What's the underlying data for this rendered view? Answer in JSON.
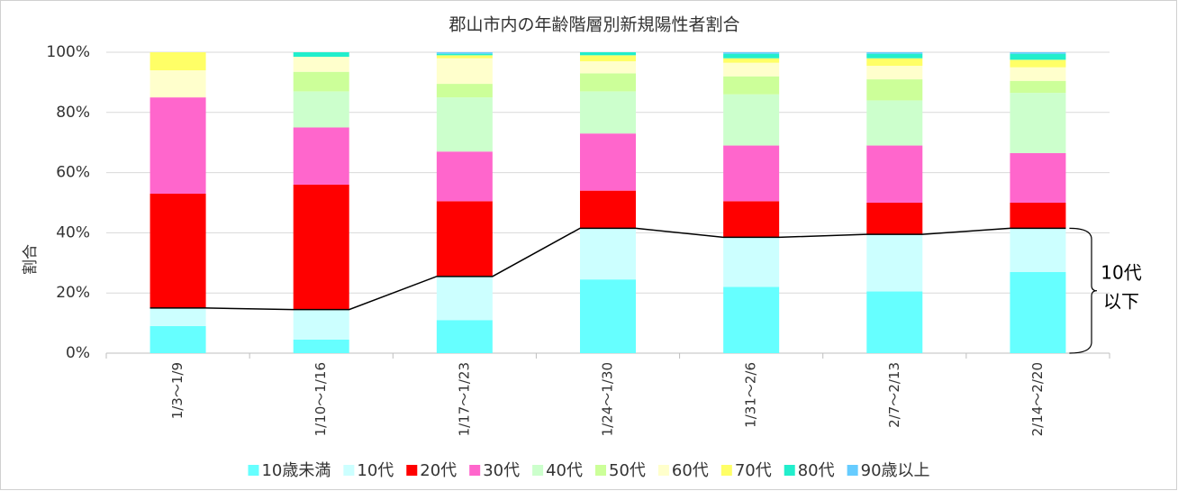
{
  "chart_data": {
    "type": "stacked_bar",
    "title": "郡山市内の年齢階層別新規陽性者割合",
    "y_label": "割合",
    "annotation": [
      "10代",
      "以下"
    ],
    "categories": [
      "1/3～1/9",
      "1/10～1/16",
      "1/17～1/23",
      "1/24～1/30",
      "1/31～2/6",
      "2/7～2/13",
      "2/14～2/20"
    ],
    "series": [
      {
        "name": "10歳未満",
        "color": "#66ffff",
        "values": [
          9,
          4.5,
          11,
          24.5,
          22,
          20.5,
          27
        ]
      },
      {
        "name": "10代",
        "color": "#ccffff",
        "values": [
          6,
          10,
          14.5,
          17,
          16.5,
          19,
          14.5
        ]
      },
      {
        "name": "20代",
        "color": "#ff0000",
        "values": [
          38,
          41.5,
          25,
          12.5,
          12,
          10.5,
          8.5
        ]
      },
      {
        "name": "30代",
        "color": "#ff66cc",
        "values": [
          32,
          19,
          16.5,
          19,
          18.5,
          19,
          16.5
        ]
      },
      {
        "name": "40代",
        "color": "#ccffcc",
        "values": [
          0,
          12,
          18,
          14,
          17,
          15,
          20
        ]
      },
      {
        "name": "50代",
        "color": "#ccff99",
        "values": [
          0,
          6.5,
          4.5,
          6,
          6,
          7,
          4
        ]
      },
      {
        "name": "60代",
        "color": "#ffffcc",
        "values": [
          9,
          5,
          8.5,
          4,
          4.5,
          4.5,
          4.5
        ]
      },
      {
        "name": "70代",
        "color": "#ffff66",
        "values": [
          6,
          0,
          1,
          2,
          1.5,
          2.5,
          2.5
        ]
      },
      {
        "name": "80代",
        "color": "#22eecc",
        "values": [
          0,
          1.5,
          0.5,
          1,
          1.5,
          1.5,
          2
        ]
      },
      {
        "name": "90歳以上",
        "color": "#66ccff",
        "values": [
          0,
          0,
          0.5,
          0,
          0.5,
          0.5,
          0.5
        ]
      }
    ],
    "ylim": [
      0,
      100
    ],
    "yticks": [
      {
        "value": 0,
        "label": "0%"
      },
      {
        "value": 20,
        "label": "20%"
      },
      {
        "value": 40,
        "label": "40%"
      },
      {
        "value": 60,
        "label": "60%"
      },
      {
        "value": 80,
        "label": "80%"
      },
      {
        "value": 100,
        "label": "100%"
      }
    ],
    "grid": true,
    "legend": "bottom"
  }
}
